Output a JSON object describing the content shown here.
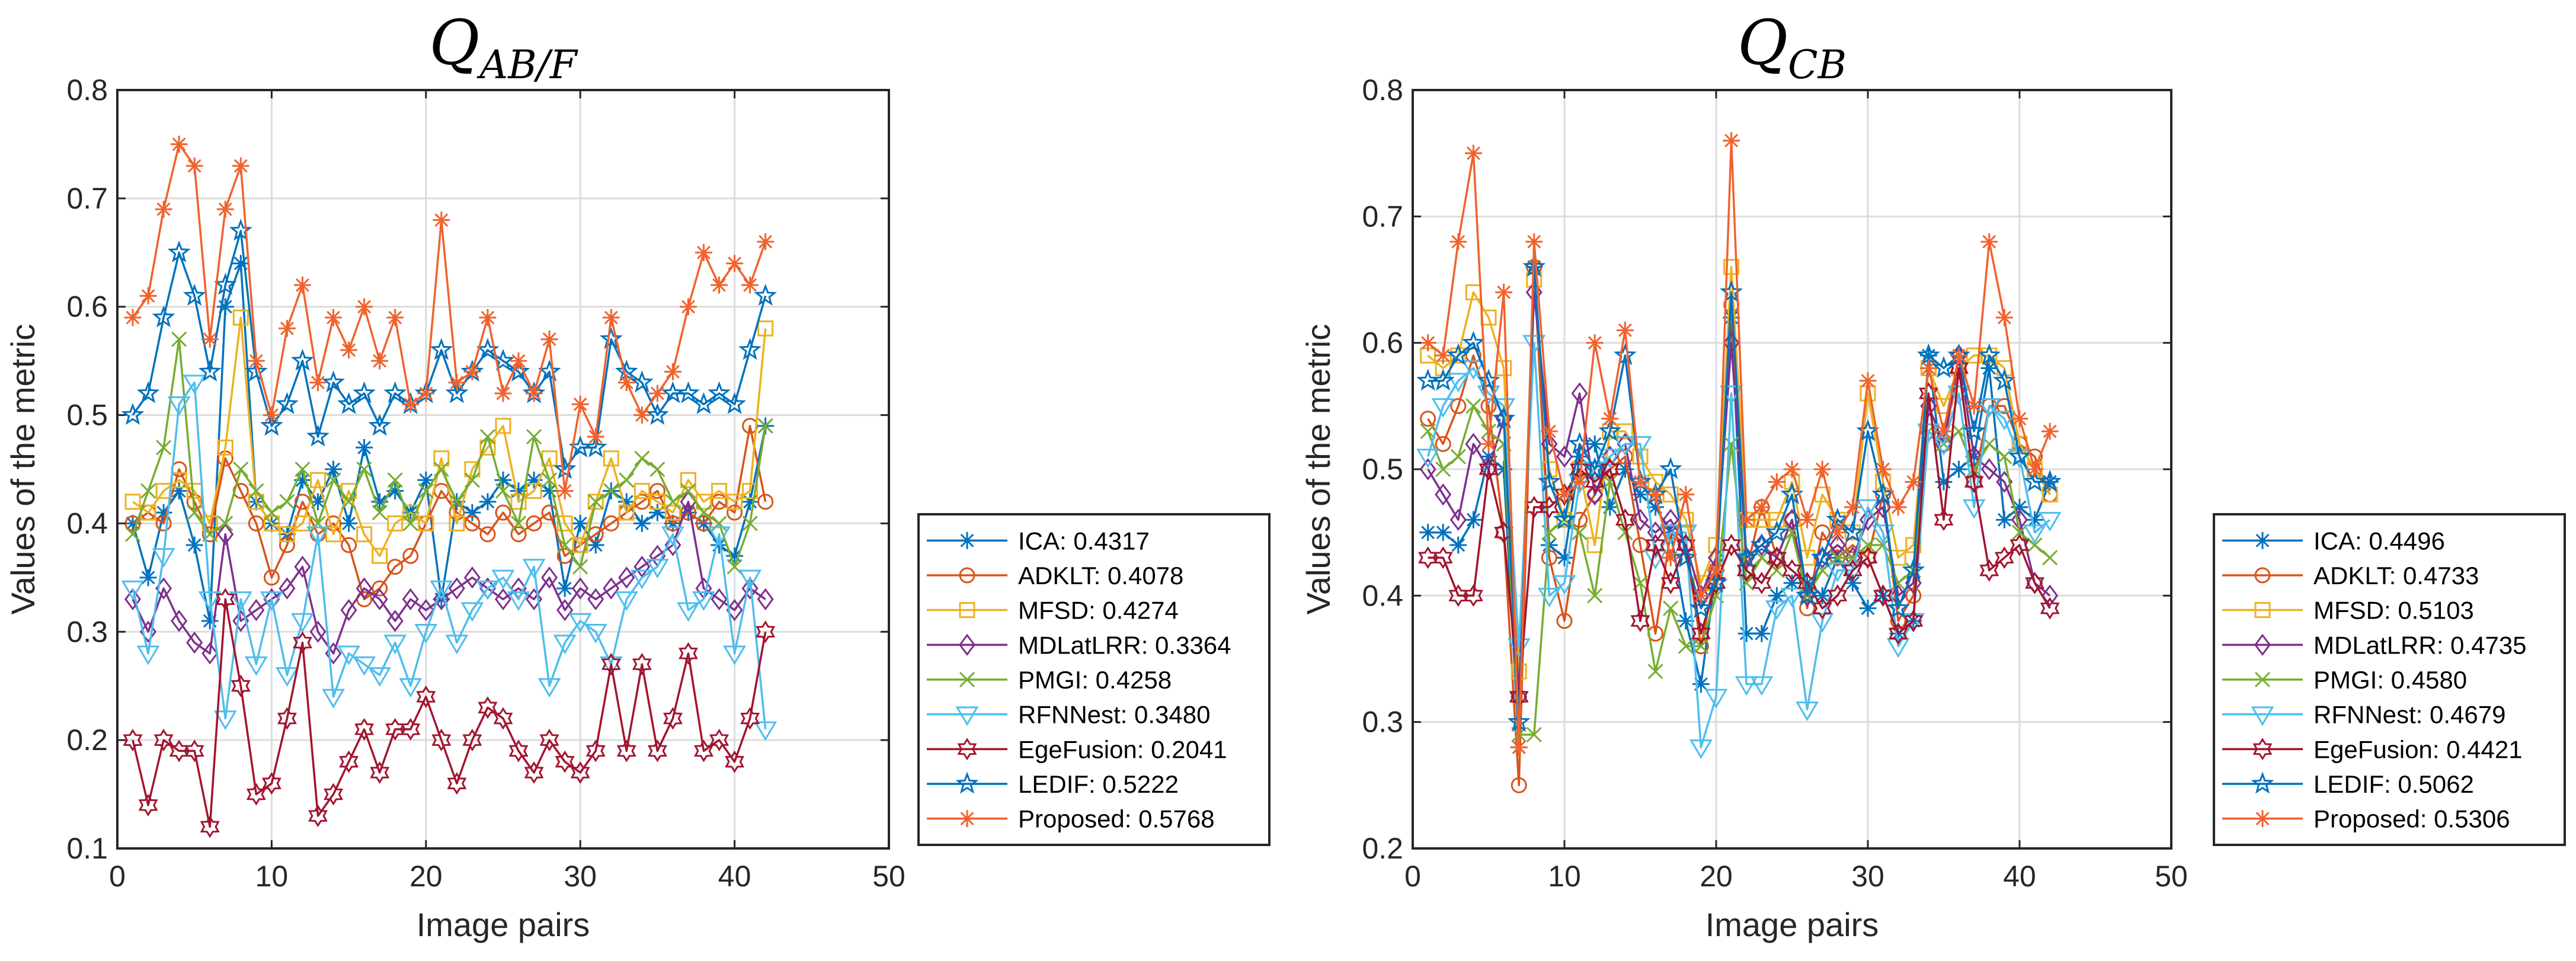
{
  "chart_data": [
    {
      "type": "line",
      "title": "Q",
      "title_subscript": "AB/F",
      "xlabel": "Image pairs",
      "ylabel": "Values of the metric",
      "xlim": [
        0,
        50
      ],
      "ylim": [
        0.1,
        0.8
      ],
      "xticks": [
        "0",
        "10",
        "20",
        "30",
        "40",
        "50"
      ],
      "yticks": [
        "0.1",
        "0.2",
        "0.3",
        "0.4",
        "0.5",
        "0.6",
        "0.7",
        "0.8"
      ],
      "grid": true,
      "legend": "right-bottom",
      "x": [
        1,
        2,
        3,
        4,
        5,
        6,
        7,
        8,
        9,
        10,
        11,
        12,
        13,
        14,
        15,
        16,
        17,
        18,
        19,
        20,
        21,
        22,
        23,
        24,
        25,
        26,
        27,
        28,
        29,
        30,
        31,
        32,
        33,
        34,
        35,
        36,
        37,
        38,
        39,
        40,
        41,
        42
      ],
      "series": [
        {
          "name": "ICA",
          "legend": "ICA: 0.4317",
          "color": "#0072BD",
          "marker": "asterisk",
          "values": [
            0.4,
            0.35,
            0.41,
            0.43,
            0.38,
            0.31,
            0.6,
            0.64,
            0.42,
            0.4,
            0.39,
            0.44,
            0.42,
            0.45,
            0.4,
            0.47,
            0.42,
            0.43,
            0.41,
            0.44,
            0.33,
            0.42,
            0.41,
            0.42,
            0.44,
            0.43,
            0.44,
            0.43,
            0.34,
            0.4,
            0.38,
            0.43,
            0.42,
            0.4,
            0.41,
            0.4,
            0.41,
            0.4,
            0.38,
            0.37,
            0.42,
            0.49
          ]
        },
        {
          "name": "ADKLT",
          "legend": "ADKLT: 0.4078",
          "color": "#D95319",
          "marker": "circle",
          "values": [
            0.4,
            0.41,
            0.4,
            0.45,
            0.42,
            0.39,
            0.46,
            0.43,
            0.4,
            0.35,
            0.38,
            0.42,
            0.39,
            0.4,
            0.38,
            0.33,
            0.34,
            0.36,
            0.37,
            0.4,
            0.43,
            0.41,
            0.4,
            0.39,
            0.41,
            0.39,
            0.4,
            0.41,
            0.37,
            0.38,
            0.39,
            0.4,
            0.41,
            0.42,
            0.43,
            0.4,
            0.41,
            0.4,
            0.42,
            0.41,
            0.49,
            0.42
          ]
        },
        {
          "name": "MFSD",
          "legend": "MFSD: 0.4274",
          "color": "#EDB120",
          "marker": "square",
          "values": [
            0.42,
            0.41,
            0.43,
            0.44,
            0.43,
            0.4,
            0.47,
            0.59,
            0.42,
            0.4,
            0.39,
            0.4,
            0.44,
            0.39,
            0.43,
            0.39,
            0.37,
            0.4,
            0.41,
            0.4,
            0.46,
            0.4,
            0.45,
            0.47,
            0.49,
            0.42,
            0.43,
            0.46,
            0.4,
            0.38,
            0.42,
            0.46,
            0.41,
            0.43,
            0.42,
            0.41,
            0.44,
            0.42,
            0.43,
            0.42,
            0.43,
            0.58
          ]
        },
        {
          "name": "MDLatLRR",
          "legend": "MDLatLRR: 0.3364",
          "color": "#7E2F8E",
          "marker": "diamond",
          "values": [
            0.33,
            0.3,
            0.34,
            0.31,
            0.29,
            0.28,
            0.39,
            0.31,
            0.32,
            0.33,
            0.34,
            0.36,
            0.3,
            0.28,
            0.32,
            0.34,
            0.33,
            0.31,
            0.33,
            0.32,
            0.33,
            0.34,
            0.35,
            0.34,
            0.33,
            0.34,
            0.33,
            0.35,
            0.32,
            0.34,
            0.33,
            0.34,
            0.35,
            0.36,
            0.37,
            0.38,
            0.42,
            0.34,
            0.33,
            0.32,
            0.34,
            0.33
          ]
        },
        {
          "name": "PMGI",
          "legend": "PMGI: 0.4258",
          "color": "#77AC30",
          "marker": "x",
          "values": [
            0.39,
            0.43,
            0.47,
            0.57,
            0.41,
            0.39,
            0.4,
            0.45,
            0.43,
            0.41,
            0.42,
            0.45,
            0.4,
            0.44,
            0.42,
            0.45,
            0.41,
            0.44,
            0.4,
            0.43,
            0.45,
            0.42,
            0.44,
            0.48,
            0.43,
            0.4,
            0.48,
            0.44,
            0.38,
            0.36,
            0.42,
            0.43,
            0.44,
            0.46,
            0.45,
            0.42,
            0.43,
            0.41,
            0.4,
            0.36,
            0.4,
            0.49
          ]
        },
        {
          "name": "RFNNest",
          "legend": "RFNNest: 0.3480",
          "color": "#4DBEEE",
          "marker": "triangle-down",
          "values": [
            0.34,
            0.28,
            0.37,
            0.51,
            0.53,
            0.33,
            0.22,
            0.33,
            0.27,
            0.33,
            0.26,
            0.31,
            0.39,
            0.24,
            0.28,
            0.27,
            0.26,
            0.29,
            0.25,
            0.3,
            0.34,
            0.29,
            0.32,
            0.34,
            0.35,
            0.33,
            0.36,
            0.25,
            0.29,
            0.31,
            0.3,
            0.27,
            0.33,
            0.35,
            0.36,
            0.39,
            0.32,
            0.33,
            0.39,
            0.28,
            0.35,
            0.21
          ]
        },
        {
          "name": "EgeFusion",
          "legend": "EgeFusion: 0.2041",
          "color": "#A2142F",
          "marker": "hexagram",
          "values": [
            0.2,
            0.14,
            0.2,
            0.19,
            0.19,
            0.12,
            0.33,
            0.25,
            0.15,
            0.16,
            0.22,
            0.29,
            0.13,
            0.15,
            0.18,
            0.21,
            0.17,
            0.21,
            0.21,
            0.24,
            0.2,
            0.16,
            0.2,
            0.23,
            0.22,
            0.19,
            0.17,
            0.2,
            0.18,
            0.17,
            0.19,
            0.27,
            0.19,
            0.27,
            0.19,
            0.22,
            0.28,
            0.19,
            0.2,
            0.18,
            0.22,
            0.3
          ]
        },
        {
          "name": "LEDIF",
          "legend": "LEDIF: 0.5222",
          "color": "#0072BD",
          "marker": "pentagram",
          "values": [
            0.5,
            0.52,
            0.59,
            0.65,
            0.61,
            0.54,
            0.62,
            0.67,
            0.54,
            0.49,
            0.51,
            0.55,
            0.48,
            0.53,
            0.51,
            0.52,
            0.49,
            0.52,
            0.51,
            0.52,
            0.56,
            0.52,
            0.54,
            0.56,
            0.55,
            0.54,
            0.52,
            0.54,
            0.45,
            0.47,
            0.47,
            0.57,
            0.54,
            0.53,
            0.5,
            0.52,
            0.52,
            0.51,
            0.52,
            0.51,
            0.56,
            0.61
          ]
        },
        {
          "name": "Proposed",
          "legend": "Proposed: 0.5768",
          "color": "#F0622D",
          "marker": "asterisk",
          "values": [
            0.59,
            0.61,
            0.69,
            0.75,
            0.73,
            0.57,
            0.69,
            0.73,
            0.55,
            0.5,
            0.58,
            0.62,
            0.53,
            0.59,
            0.56,
            0.6,
            0.55,
            0.59,
            0.51,
            0.52,
            0.68,
            0.53,
            0.54,
            0.59,
            0.52,
            0.55,
            0.52,
            0.57,
            0.43,
            0.51,
            0.48,
            0.59,
            0.53,
            0.5,
            0.52,
            0.54,
            0.6,
            0.65,
            0.62,
            0.64,
            0.62,
            0.66
          ]
        }
      ]
    },
    {
      "type": "line",
      "title": "Q",
      "title_subscript": "CB",
      "xlabel": "Image pairs",
      "ylabel": "Values of the metric",
      "xlim": [
        0,
        50
      ],
      "ylim": [
        0.2,
        0.8
      ],
      "xticks": [
        "0",
        "10",
        "20",
        "30",
        "40",
        "50"
      ],
      "yticks": [
        "0.2",
        "0.3",
        "0.4",
        "0.5",
        "0.6",
        "0.7",
        "0.8"
      ],
      "grid": true,
      "legend": "right-bottom",
      "x": [
        1,
        2,
        3,
        4,
        5,
        6,
        7,
        8,
        9,
        10,
        11,
        12,
        13,
        14,
        15,
        16,
        17,
        18,
        19,
        20,
        21,
        22,
        23,
        24,
        25,
        26,
        27,
        28,
        29,
        30,
        31,
        32,
        33,
        34,
        35,
        36,
        37,
        38,
        39,
        40,
        41,
        42
      ],
      "series": [
        {
          "name": "ICA",
          "legend": "ICA: 0.4496",
          "color": "#0072BD",
          "marker": "asterisk",
          "values": [
            0.45,
            0.45,
            0.44,
            0.46,
            0.51,
            0.5,
            0.28,
            0.66,
            0.44,
            0.43,
            0.51,
            0.52,
            0.47,
            0.5,
            0.48,
            0.47,
            0.45,
            0.38,
            0.33,
            0.42,
            0.62,
            0.37,
            0.37,
            0.4,
            0.41,
            0.41,
            0.4,
            0.43,
            0.41,
            0.39,
            0.4,
            0.37,
            0.38,
            0.59,
            0.49,
            0.5,
            0.51,
            0.58,
            0.46,
            0.47,
            0.46,
            0.49
          ]
        },
        {
          "name": "ADKLT",
          "legend": "ADKLT: 0.4733",
          "color": "#D95319",
          "marker": "circle",
          "values": [
            0.54,
            0.52,
            0.55,
            0.59,
            0.55,
            0.45,
            0.25,
            0.66,
            0.43,
            0.38,
            0.46,
            0.48,
            0.5,
            0.51,
            0.44,
            0.37,
            0.45,
            0.44,
            0.36,
            0.42,
            0.63,
            0.42,
            0.47,
            0.43,
            0.46,
            0.39,
            0.45,
            0.43,
            0.44,
            0.43,
            0.48,
            0.38,
            0.4,
            0.53,
            0.52,
            0.58,
            0.49,
            0.55,
            0.55,
            0.52,
            0.51,
            0.48
          ]
        },
        {
          "name": "MFSD",
          "legend": "MFSD: 0.5103",
          "color": "#EDB120",
          "marker": "square",
          "values": [
            0.59,
            0.58,
            0.59,
            0.64,
            0.62,
            0.58,
            0.34,
            0.65,
            0.5,
            0.46,
            0.5,
            0.44,
            0.53,
            0.53,
            0.51,
            0.49,
            0.48,
            0.46,
            0.41,
            0.44,
            0.66,
            0.46,
            0.46,
            0.46,
            0.49,
            0.43,
            0.48,
            0.46,
            0.45,
            0.56,
            0.49,
            0.43,
            0.44,
            0.58,
            0.55,
            0.58,
            0.59,
            0.59,
            0.58,
            0.52,
            0.5,
            0.48
          ]
        },
        {
          "name": "MDLatLRR",
          "legend": "MDLatLRR: 0.4735",
          "color": "#7E2F8E",
          "marker": "diamond",
          "values": [
            0.5,
            0.48,
            0.46,
            0.52,
            0.5,
            0.54,
            0.32,
            0.64,
            0.52,
            0.51,
            0.56,
            0.48,
            0.51,
            0.52,
            0.46,
            0.45,
            0.46,
            0.44,
            0.4,
            0.43,
            0.6,
            0.43,
            0.44,
            0.43,
            0.46,
            0.4,
            0.43,
            0.44,
            0.43,
            0.46,
            0.47,
            0.4,
            0.41,
            0.55,
            0.52,
            0.59,
            0.51,
            0.5,
            0.49,
            0.46,
            0.41,
            0.4
          ]
        },
        {
          "name": "PMGI",
          "legend": "PMGI: 0.4580",
          "color": "#77AC30",
          "marker": "x",
          "values": [
            0.53,
            0.5,
            0.51,
            0.55,
            0.53,
            0.52,
            0.29,
            0.29,
            0.45,
            0.46,
            0.45,
            0.4,
            0.49,
            0.45,
            0.41,
            0.34,
            0.39,
            0.36,
            0.36,
            0.4,
            0.52,
            0.41,
            0.43,
            0.42,
            0.45,
            0.4,
            0.42,
            0.43,
            0.43,
            0.44,
            0.44,
            0.41,
            0.42,
            0.53,
            0.52,
            0.53,
            0.5,
            0.52,
            0.51,
            0.45,
            0.44,
            0.43
          ]
        },
        {
          "name": "RFNNest",
          "legend": "RFNNest: 0.4679",
          "color": "#4DBEEE",
          "marker": "triangle-down",
          "values": [
            0.51,
            0.55,
            0.57,
            0.58,
            0.56,
            0.55,
            0.36,
            0.6,
            0.4,
            0.41,
            0.49,
            0.5,
            0.51,
            0.52,
            0.52,
            0.43,
            0.45,
            0.45,
            0.28,
            0.32,
            0.56,
            0.33,
            0.33,
            0.39,
            0.4,
            0.31,
            0.38,
            0.42,
            0.42,
            0.47,
            0.45,
            0.36,
            0.38,
            0.53,
            0.52,
            0.56,
            0.47,
            0.55,
            0.54,
            0.51,
            0.45,
            0.46
          ]
        },
        {
          "name": "EgeFusion",
          "legend": "EgeFusion: 0.4421",
          "color": "#A2142F",
          "marker": "hexagram",
          "values": [
            0.43,
            0.43,
            0.4,
            0.4,
            0.5,
            0.45,
            0.32,
            0.47,
            0.47,
            0.48,
            0.5,
            0.49,
            0.5,
            0.46,
            0.38,
            0.44,
            0.41,
            0.44,
            0.37,
            0.41,
            0.44,
            0.42,
            0.41,
            0.43,
            0.42,
            0.41,
            0.39,
            0.4,
            0.42,
            0.43,
            0.4,
            0.37,
            0.38,
            0.56,
            0.46,
            0.58,
            0.49,
            0.42,
            0.43,
            0.44,
            0.41,
            0.39
          ]
        },
        {
          "name": "LEDIF",
          "legend": "LEDIF: 0.5062",
          "color": "#0072BD",
          "marker": "pentagram",
          "values": [
            0.57,
            0.57,
            0.59,
            0.6,
            0.57,
            0.54,
            0.3,
            0.66,
            0.49,
            0.46,
            0.52,
            0.5,
            0.53,
            0.59,
            0.49,
            0.48,
            0.5,
            0.43,
            0.39,
            0.41,
            0.64,
            0.43,
            0.44,
            0.45,
            0.48,
            0.4,
            0.43,
            0.46,
            0.45,
            0.53,
            0.48,
            0.39,
            0.42,
            0.59,
            0.58,
            0.59,
            0.53,
            0.59,
            0.57,
            0.51,
            0.49,
            0.49
          ]
        },
        {
          "name": "Proposed",
          "legend": "Proposed: 0.5306",
          "color": "#F0622D",
          "marker": "asterisk",
          "values": [
            0.6,
            0.59,
            0.68,
            0.75,
            0.52,
            0.64,
            0.28,
            0.68,
            0.53,
            0.48,
            0.49,
            0.6,
            0.54,
            0.61,
            0.49,
            0.48,
            0.43,
            0.48,
            0.4,
            0.42,
            0.76,
            0.46,
            0.47,
            0.49,
            0.5,
            0.46,
            0.5,
            0.45,
            0.47,
            0.57,
            0.5,
            0.47,
            0.49,
            0.58,
            0.53,
            0.59,
            0.55,
            0.68,
            0.62,
            0.54,
            0.5,
            0.53
          ]
        }
      ]
    }
  ]
}
